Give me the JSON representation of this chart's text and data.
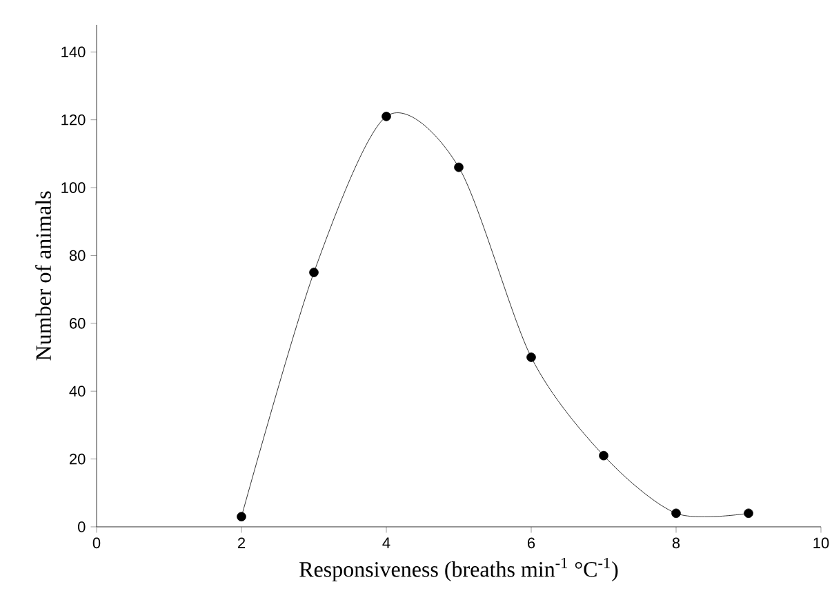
{
  "chart_data": {
    "type": "line",
    "xlabel": "Responsiveness (breaths min$^{-1}$ °C$^{-1}$)",
    "ylabel": "Number of animals",
    "x": [
      2,
      3,
      4,
      5,
      6,
      7,
      8,
      9
    ],
    "series": [
      {
        "color": "#000000",
        "values": [
          3,
          75,
          121,
          106,
          50,
          21,
          4,
          4
        ]
      }
    ],
    "xlim": [
      0,
      10
    ],
    "xticks": [
      0,
      2,
      4,
      6,
      8,
      10
    ],
    "ylim": [
      0,
      148
    ],
    "yticks": [
      0,
      20,
      40,
      60,
      80,
      100,
      120,
      140
    ],
    "marker": "circle",
    "line_style": "solid"
  }
}
